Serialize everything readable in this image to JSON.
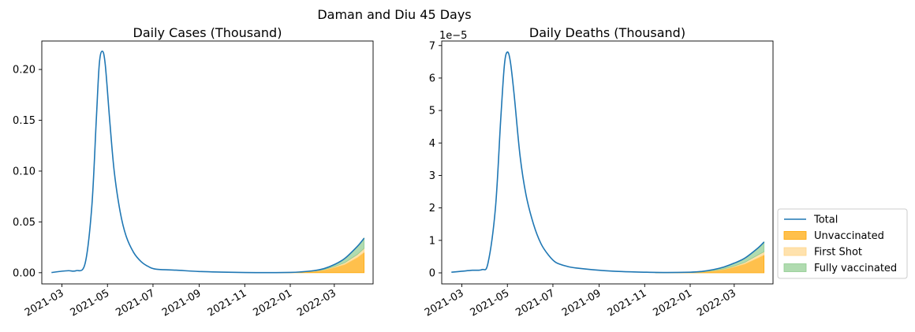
{
  "suptitle": "Daman and Diu 45 Days",
  "legend": {
    "placement": "lower-right outside",
    "items": [
      {
        "label": "Total",
        "kind": "line",
        "color": "#1f77b4"
      },
      {
        "label": "Unvaccinated",
        "kind": "patch",
        "color": "#ffa500",
        "alpha": 0.7
      },
      {
        "label": "First Shot",
        "kind": "patch",
        "color": "#ffd68a",
        "alpha": 0.7
      },
      {
        "label": "Fully vaccinated",
        "kind": "patch",
        "color": "#8fcc8f",
        "alpha": 0.7
      }
    ]
  },
  "chart_data": [
    {
      "type": "area",
      "title": "Daily Cases (Thousand)",
      "xlabel": "",
      "ylabel": "",
      "x_ticks": [
        "2021-03",
        "2021-05",
        "2021-07",
        "2021-09",
        "2021-11",
        "2022-01",
        "2022-03"
      ],
      "y_ticks": [
        "0.00",
        "0.05",
        "0.10",
        "0.15",
        "0.20"
      ],
      "y_tick_values": [
        0,
        0.05,
        0.1,
        0.15,
        0.2
      ],
      "y_offset_label": "",
      "xlim": [
        "2021-02-02",
        "2022-04-22"
      ],
      "ylim": [
        -0.011,
        0.228
      ],
      "grid": false,
      "series": [
        {
          "name": "Total",
          "kind": "line",
          "x": [
            "2021-02-15",
            "2021-03-01",
            "2021-03-10",
            "2021-03-20",
            "2021-04-01",
            "2021-04-10",
            "2021-04-16",
            "2021-04-20",
            "2021-04-24",
            "2021-04-28",
            "2021-05-04",
            "2021-05-10",
            "2021-05-18",
            "2021-05-26",
            "2021-06-05",
            "2021-06-15",
            "2021-06-25",
            "2021-07-05",
            "2021-08-01",
            "2021-09-01",
            "2021-10-01",
            "2021-11-01",
            "2021-12-01",
            "2022-01-01",
            "2022-01-15",
            "2022-02-01",
            "2022-02-15",
            "2022-03-01",
            "2022-03-15",
            "2022-04-01",
            "2022-04-10"
          ],
          "values": [
            0.0002,
            0.0015,
            0.002,
            0.002,
            0.009,
            0.065,
            0.15,
            0.205,
            0.218,
            0.205,
            0.15,
            0.1,
            0.06,
            0.036,
            0.02,
            0.011,
            0.006,
            0.0035,
            0.0025,
            0.0012,
            0.0006,
            0.0002,
            0.0001,
            0.0003,
            0.0008,
            0.002,
            0.004,
            0.008,
            0.014,
            0.026,
            0.034
          ]
        },
        {
          "name": "Unvaccinated",
          "kind": "area",
          "x": [
            "2021-11-15",
            "2022-01-01",
            "2022-01-15",
            "2022-02-01",
            "2022-02-15",
            "2022-03-01",
            "2022-03-15",
            "2022-04-01",
            "2022-04-10"
          ],
          "values": [
            0,
            0.0002,
            0.0005,
            0.0012,
            0.0025,
            0.005,
            0.008,
            0.015,
            0.02
          ]
        },
        {
          "name": "First Shot",
          "kind": "area",
          "x": [
            "2021-11-15",
            "2022-01-01",
            "2022-01-15",
            "2022-02-01",
            "2022-02-15",
            "2022-03-01",
            "2022-03-15",
            "2022-04-01",
            "2022-04-10"
          ],
          "values": [
            0,
            5e-05,
            0.0001,
            0.0003,
            0.0005,
            0.001,
            0.0018,
            0.003,
            0.004
          ]
        },
        {
          "name": "Fully vaccinated",
          "kind": "area",
          "x": [
            "2021-11-15",
            "2022-01-01",
            "2022-01-15",
            "2022-02-01",
            "2022-02-15",
            "2022-03-01",
            "2022-03-15",
            "2022-04-01",
            "2022-04-10"
          ],
          "values": [
            0,
            5e-05,
            0.0002,
            0.0005,
            0.001,
            0.002,
            0.0042,
            0.008,
            0.01
          ]
        }
      ]
    },
    {
      "type": "area",
      "title": "Daily Deaths (Thousand)",
      "xlabel": "",
      "ylabel": "",
      "x_ticks": [
        "2021-03",
        "2021-05",
        "2021-07",
        "2021-09",
        "2021-11",
        "2022-01",
        "2022-03"
      ],
      "y_ticks": [
        "0",
        "1",
        "2",
        "3",
        "4",
        "5",
        "6",
        "7"
      ],
      "y_tick_values": [
        0,
        1,
        2,
        3,
        4,
        5,
        6,
        7
      ],
      "y_offset_label": "1e−5",
      "xlim": [
        "2021-02-02",
        "2022-04-22"
      ],
      "ylim": [
        -0.34,
        7.14
      ],
      "grid": false,
      "series": [
        {
          "name": "Total",
          "kind": "line",
          "x": [
            "2021-02-15",
            "2021-03-01",
            "2021-03-15",
            "2021-03-28",
            "2021-04-05",
            "2021-04-15",
            "2021-04-22",
            "2021-04-27",
            "2021-05-01",
            "2021-05-05",
            "2021-05-10",
            "2021-05-18",
            "2021-05-26",
            "2021-06-05",
            "2021-06-15",
            "2021-06-25",
            "2021-07-05",
            "2021-07-20",
            "2021-08-01",
            "2021-09-01",
            "2021-10-01",
            "2021-11-01",
            "2021-12-01",
            "2022-01-01",
            "2022-01-15",
            "2022-02-01",
            "2022-02-15",
            "2022-03-01",
            "2022-03-15",
            "2022-04-01",
            "2022-04-10"
          ],
          "values": [
            0.02,
            0.05,
            0.08,
            0.1,
            0.3,
            2.0,
            4.7,
            6.4,
            6.8,
            6.5,
            5.5,
            3.6,
            2.4,
            1.5,
            0.9,
            0.55,
            0.32,
            0.2,
            0.15,
            0.08,
            0.04,
            0.02,
            0.01,
            0.02,
            0.04,
            0.1,
            0.18,
            0.3,
            0.45,
            0.75,
            0.95
          ]
        },
        {
          "name": "Unvaccinated",
          "kind": "area",
          "x": [
            "2021-11-15",
            "2022-01-01",
            "2022-01-15",
            "2022-02-01",
            "2022-02-15",
            "2022-03-01",
            "2022-03-15",
            "2022-04-01",
            "2022-04-10"
          ],
          "values": [
            0,
            0.01,
            0.02,
            0.06,
            0.1,
            0.18,
            0.27,
            0.45,
            0.55
          ]
        },
        {
          "name": "First Shot",
          "kind": "area",
          "x": [
            "2021-11-15",
            "2022-01-01",
            "2022-01-15",
            "2022-02-01",
            "2022-02-15",
            "2022-03-01",
            "2022-03-15",
            "2022-04-01",
            "2022-04-10"
          ],
          "values": [
            0,
            0.002,
            0.004,
            0.01,
            0.02,
            0.03,
            0.05,
            0.09,
            0.1
          ]
        },
        {
          "name": "Fully vaccinated",
          "kind": "area",
          "x": [
            "2021-11-15",
            "2022-01-01",
            "2022-01-15",
            "2022-02-01",
            "2022-02-15",
            "2022-03-01",
            "2022-03-15",
            "2022-04-01",
            "2022-04-10"
          ],
          "values": [
            0,
            0.005,
            0.012,
            0.03,
            0.05,
            0.09,
            0.13,
            0.21,
            0.3
          ]
        }
      ]
    }
  ]
}
